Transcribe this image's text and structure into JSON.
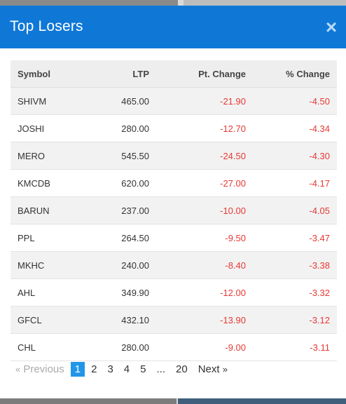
{
  "colors": {
    "header_bg": "#0f78d7",
    "negative": "#e53935",
    "active_page": "#2196e8"
  },
  "modal": {
    "title": "Top Losers",
    "close_icon": "×"
  },
  "table": {
    "columns": [
      "Symbol",
      "LTP",
      "Pt. Change",
      "% Change"
    ],
    "rows": [
      {
        "symbol": "SHIVM",
        "ltp": "465.00",
        "pt_change": "-21.90",
        "pct_change": "-4.50"
      },
      {
        "symbol": "JOSHI",
        "ltp": "280.00",
        "pt_change": "-12.70",
        "pct_change": "-4.34"
      },
      {
        "symbol": "MERO",
        "ltp": "545.50",
        "pt_change": "-24.50",
        "pct_change": "-4.30"
      },
      {
        "symbol": "KMCDB",
        "ltp": "620.00",
        "pt_change": "-27.00",
        "pct_change": "-4.17"
      },
      {
        "symbol": "BARUN",
        "ltp": "237.00",
        "pt_change": "-10.00",
        "pct_change": "-4.05"
      },
      {
        "symbol": "PPL",
        "ltp": "264.50",
        "pt_change": "-9.50",
        "pct_change": "-3.47"
      },
      {
        "symbol": "MKHC",
        "ltp": "240.00",
        "pt_change": "-8.40",
        "pct_change": "-3.38"
      },
      {
        "symbol": "AHL",
        "ltp": "349.90",
        "pt_change": "-12.00",
        "pct_change": "-3.32"
      },
      {
        "symbol": "GFCL",
        "ltp": "432.10",
        "pt_change": "-13.90",
        "pct_change": "-3.12"
      },
      {
        "symbol": "CHL",
        "ltp": "280.00",
        "pt_change": "-9.00",
        "pct_change": "-3.11"
      }
    ]
  },
  "pagination": {
    "prev_arrow": "«",
    "prev_label": "Previous",
    "pages": [
      "1",
      "2",
      "3",
      "4",
      "5",
      "...",
      "20"
    ],
    "current_page": "1",
    "next_label": "Next",
    "next_arrow": "»"
  }
}
